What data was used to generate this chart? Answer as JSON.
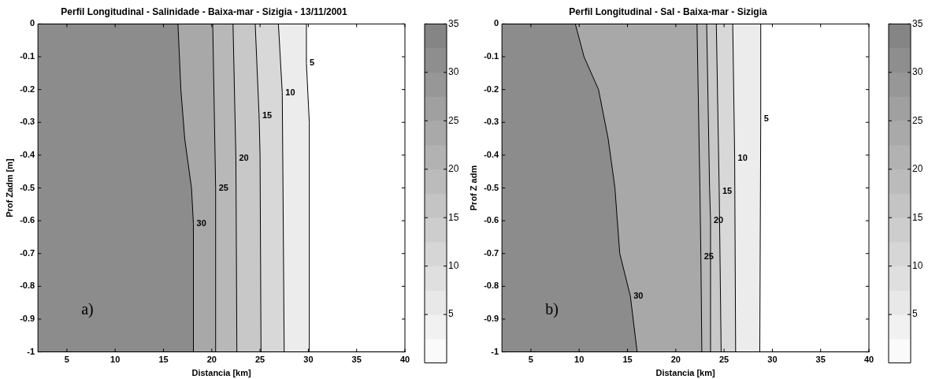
{
  "chart_data": [
    {
      "type": "area",
      "title": "Perfil Longitudinal - Salinidade - Baixa-mar - Sizigia - 13/11/2001",
      "xlabel": "Distancia [km]",
      "ylabel": "Prof Zadm [m]",
      "xlim": [
        2,
        40
      ],
      "ylim": [
        -1,
        0
      ],
      "xticks": [
        5,
        10,
        15,
        20,
        25,
        30,
        35,
        40
      ],
      "yticks": [
        0,
        -0.1,
        -0.2,
        -0.3,
        -0.4,
        -0.5,
        -0.6,
        -0.7,
        -0.8,
        -0.9,
        -1
      ],
      "clim": [
        0,
        35
      ],
      "cticks": [
        5,
        10,
        15,
        20,
        25,
        30,
        35
      ],
      "series": [
        {
          "color": "#8c8c8c",
          "x": [
            2,
            18.1,
            18.1,
            17.9,
            17.2,
            16.8,
            16.5,
            2
          ],
          "values": [
            -1,
            -1,
            -0.61,
            -0.5,
            -0.35,
            -0.2,
            0,
            0
          ]
        },
        {
          "color": "#a8a8a8",
          "x": [
            2,
            20.4,
            20.4,
            20.1,
            2
          ],
          "values": [
            -1,
            -1,
            -0.5,
            0,
            0
          ]
        },
        {
          "color": "#b8b8b8",
          "x": [
            2,
            22.6,
            22.5,
            22.2,
            2
          ],
          "values": [
            -1,
            -1,
            -0.41,
            0,
            0
          ]
        },
        {
          "color": "#c8c8c8",
          "x": [
            2,
            25.1,
            25,
            24.9,
            24.5,
            2
          ],
          "values": [
            -1,
            -1,
            -0.4,
            -0.28,
            0,
            0
          ]
        },
        {
          "color": "#d8d8d8",
          "x": [
            2,
            27.5,
            27.4,
            27.3,
            26.9,
            2
          ],
          "values": [
            -1,
            -1,
            -0.6,
            -0.21,
            0,
            0
          ]
        },
        {
          "color": "#ececec",
          "x": [
            2,
            30.1,
            30.1,
            29.8,
            29.8,
            2
          ],
          "values": [
            -1,
            -1,
            -0.3,
            -0.12,
            0,
            0
          ]
        }
      ],
      "annotations": [
        {
          "text": "5",
          "x": 29.8,
          "y": -0.12
        },
        {
          "text": "10",
          "x": 27.3,
          "y": -0.21
        },
        {
          "text": "15",
          "x": 24.9,
          "y": -0.28
        },
        {
          "text": "20",
          "x": 22.5,
          "y": -0.41
        },
        {
          "text": "25",
          "x": 20.4,
          "y": -0.5
        },
        {
          "text": "30",
          "x": 18.1,
          "y": -0.61
        },
        "a)"
      ]
    },
    {
      "type": "area",
      "title": "Perfil Longitudinal - Sal - Baixa-mar - Sizigia",
      "xlabel": "Distancia [km]",
      "ylabel": "Prof Z adm",
      "xlim": [
        2,
        40
      ],
      "ylim": [
        -1,
        0
      ],
      "xticks": [
        5,
        10,
        15,
        20,
        25,
        30,
        35,
        40
      ],
      "yticks": [
        0,
        -0.1,
        -0.2,
        -0.3,
        -0.4,
        -0.5,
        -0.6,
        -0.7,
        -0.8,
        -0.9,
        -1
      ],
      "clim": [
        0,
        35
      ],
      "cticks": [
        5,
        10,
        15,
        20,
        25,
        30,
        35
      ],
      "series": [
        {
          "color": "#8c8c8c",
          "x": [
            2,
            16,
            15.3,
            14.2,
            13.7,
            13,
            12,
            10.5,
            9.6,
            2
          ],
          "values": [
            -1,
            -1,
            -0.83,
            -0.7,
            -0.5,
            -0.35,
            -0.2,
            -0.1,
            0,
            0
          ]
        },
        {
          "color": "#a8a8a8",
          "x": [
            2,
            22.7,
            22.6,
            22.5,
            22.2,
            2
          ],
          "values": [
            -1,
            -1,
            -0.71,
            -0.5,
            0,
            0
          ]
        },
        {
          "color": "#b8b8b8",
          "x": [
            2,
            23.6,
            23.6,
            23.5,
            23.2,
            2
          ],
          "values": [
            -1,
            -1,
            -0.6,
            -0.5,
            0,
            0
          ]
        },
        {
          "color": "#c8c8c8",
          "x": [
            2,
            24.7,
            24.5,
            24.2,
            2
          ],
          "values": [
            -1,
            -1,
            -0.51,
            0,
            0
          ]
        },
        {
          "color": "#d8d8d8",
          "x": [
            2,
            26.2,
            26.1,
            25.9,
            2
          ],
          "values": [
            -1,
            -1,
            -0.41,
            0,
            0
          ]
        },
        {
          "color": "#ececec",
          "x": [
            2,
            28.7,
            28.8,
            28.8,
            2
          ],
          "values": [
            -1,
            -1,
            -0.29,
            0,
            0
          ]
        }
      ],
      "annotations": [
        {
          "text": "5",
          "x": 28.8,
          "y": -0.29
        },
        {
          "text": "10",
          "x": 26.1,
          "y": -0.41
        },
        {
          "text": "15",
          "x": 24.5,
          "y": -0.51
        },
        {
          "text": "20",
          "x": 23.6,
          "y": -0.6
        },
        {
          "text": "25",
          "x": 22.6,
          "y": -0.71
        },
        {
          "text": "30",
          "x": 15.3,
          "y": -0.83
        },
        "b)"
      ]
    }
  ]
}
